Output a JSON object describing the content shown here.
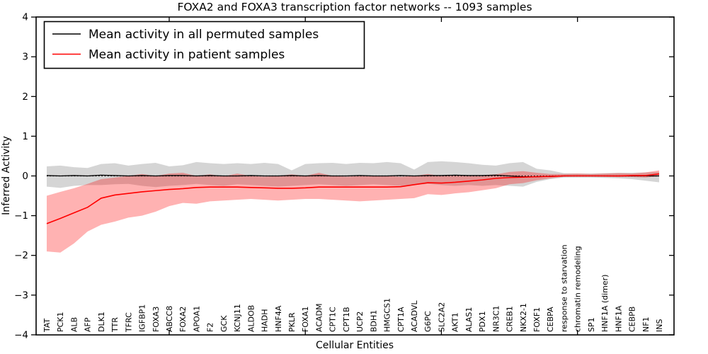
{
  "chart_data": {
    "type": "line",
    "title": "FOXA2 and FOXA3 transcription factor networks -- 1093 samples",
    "xlabel": "Cellular Entities",
    "ylabel": "Inferred Activity",
    "ylim": [
      -4,
      4
    ],
    "yticks": [
      -4,
      -3,
      -2,
      -1,
      0,
      1,
      2,
      3,
      4
    ],
    "xtick_major_indices": [
      9,
      19,
      29,
      39
    ],
    "grid": false,
    "legend_position": "upper left",
    "zero_line": {
      "value": 0,
      "style": "dotted",
      "color": "#000000"
    },
    "categories": [
      "TAT",
      "PCK1",
      "ALB",
      "AFP",
      "DLK1",
      "TTR",
      "TFRC",
      "IGFBP1",
      "FOXA3",
      "ABCC8",
      "FOXA2",
      "APOA1",
      "F2",
      "GCK",
      "KCNJ11",
      "ALDOB",
      "HADH",
      "HNF4A",
      "PKLR",
      "FOXA1",
      "ACADM",
      "CPT1C",
      "CPT1B",
      "UCP2",
      "BDH1",
      "HMGCS1",
      "CPT1A",
      "ACADVL",
      "G6PC",
      "SLC2A2",
      "AKT1",
      "ALAS1",
      "PDX1",
      "NR3C1",
      "CREB1",
      "NKX2-1",
      "FOXF1",
      "CEBPA",
      "response to starvation",
      "chromatin remodeling",
      "SP1",
      "HNF1A (dimer)",
      "HNF1A",
      "CEBPB",
      "NF1",
      "INS"
    ],
    "series": [
      {
        "name": "Mean activity in all permuted samples",
        "color": "#000000",
        "band_color": "#888888",
        "band_opacity": 0.35,
        "values": [
          0.01,
          0.0,
          0.01,
          0.0,
          0.02,
          0.01,
          0.0,
          0.01,
          0.0,
          0.01,
          0.01,
          0.0,
          0.01,
          0.0,
          0.0,
          0.01,
          0.0,
          0.0,
          0.01,
          0.0,
          0.01,
          0.0,
          0.0,
          0.01,
          0.0,
          0.0,
          0.01,
          0.0,
          0.01,
          0.01,
          0.02,
          0.01,
          0.01,
          0.02,
          0.0,
          -0.02,
          -0.02,
          -0.01,
          0.0,
          0.0,
          0.0,
          0.0,
          0.0,
          0.0,
          0.0,
          0.0
        ],
        "band_upper": [
          0.24,
          0.26,
          0.22,
          0.2,
          0.3,
          0.32,
          0.26,
          0.3,
          0.33,
          0.24,
          0.27,
          0.35,
          0.32,
          0.3,
          0.32,
          0.3,
          0.33,
          0.3,
          0.14,
          0.3,
          0.32,
          0.33,
          0.3,
          0.33,
          0.32,
          0.35,
          0.32,
          0.16,
          0.35,
          0.37,
          0.35,
          0.32,
          0.28,
          0.26,
          0.32,
          0.35,
          0.18,
          0.14,
          0.07,
          0.06,
          0.06,
          0.07,
          0.08,
          0.08,
          0.09,
          0.1
        ],
        "band_lower": [
          -0.27,
          -0.3,
          -0.25,
          -0.23,
          -0.23,
          -0.21,
          -0.2,
          -0.25,
          -0.28,
          -0.25,
          -0.23,
          -0.2,
          -0.23,
          -0.25,
          -0.21,
          -0.23,
          -0.25,
          -0.27,
          -0.25,
          -0.23,
          -0.21,
          -0.23,
          -0.25,
          -0.23,
          -0.21,
          -0.23,
          -0.25,
          -0.23,
          -0.2,
          -0.23,
          -0.25,
          -0.23,
          -0.25,
          -0.23,
          -0.25,
          -0.27,
          -0.15,
          -0.08,
          -0.04,
          -0.04,
          -0.04,
          -0.05,
          -0.06,
          -0.08,
          -0.12,
          -0.16
        ]
      },
      {
        "name": "Mean activity in patient samples",
        "color": "#ff0000",
        "band_color": "#ff0000",
        "band_opacity": 0.3,
        "values": [
          -1.2,
          -1.07,
          -0.93,
          -0.79,
          -0.56,
          -0.48,
          -0.44,
          -0.4,
          -0.37,
          -0.34,
          -0.32,
          -0.29,
          -0.28,
          -0.28,
          -0.28,
          -0.29,
          -0.3,
          -0.31,
          -0.31,
          -0.3,
          -0.28,
          -0.28,
          -0.28,
          -0.28,
          -0.28,
          -0.28,
          -0.27,
          -0.22,
          -0.17,
          -0.18,
          -0.16,
          -0.13,
          -0.1,
          -0.06,
          -0.04,
          -0.03,
          -0.02,
          -0.01,
          0.0,
          0.0,
          0.0,
          0.0,
          0.0,
          0.01,
          0.01,
          0.05
        ],
        "band_upper": [
          -0.5,
          -0.4,
          -0.31,
          -0.2,
          -0.08,
          -0.04,
          0.0,
          0.05,
          0.0,
          0.06,
          0.08,
          0.0,
          0.04,
          -0.01,
          0.06,
          0.0,
          -0.02,
          0.0,
          0.04,
          0.0,
          0.08,
          0.0,
          -0.02,
          0.0,
          -0.01,
          0.0,
          -0.02,
          0.0,
          0.05,
          0.0,
          0.02,
          0.0,
          0.02,
          0.04,
          0.1,
          0.12,
          0.08,
          0.05,
          0.05,
          0.06,
          0.05,
          0.06,
          0.07,
          0.06,
          0.09,
          0.14
        ],
        "band_lower": [
          -1.9,
          -1.93,
          -1.7,
          -1.4,
          -1.23,
          -1.15,
          -1.05,
          -1.0,
          -0.9,
          -0.76,
          -0.68,
          -0.7,
          -0.64,
          -0.62,
          -0.6,
          -0.58,
          -0.6,
          -0.62,
          -0.6,
          -0.58,
          -0.58,
          -0.6,
          -0.62,
          -0.64,
          -0.62,
          -0.6,
          -0.58,
          -0.56,
          -0.46,
          -0.48,
          -0.44,
          -0.41,
          -0.36,
          -0.31,
          -0.21,
          -0.18,
          -0.11,
          -0.06,
          -0.02,
          -0.01,
          -0.01,
          -0.02,
          -0.03,
          -0.03,
          -0.04,
          -0.01
        ]
      }
    ]
  }
}
